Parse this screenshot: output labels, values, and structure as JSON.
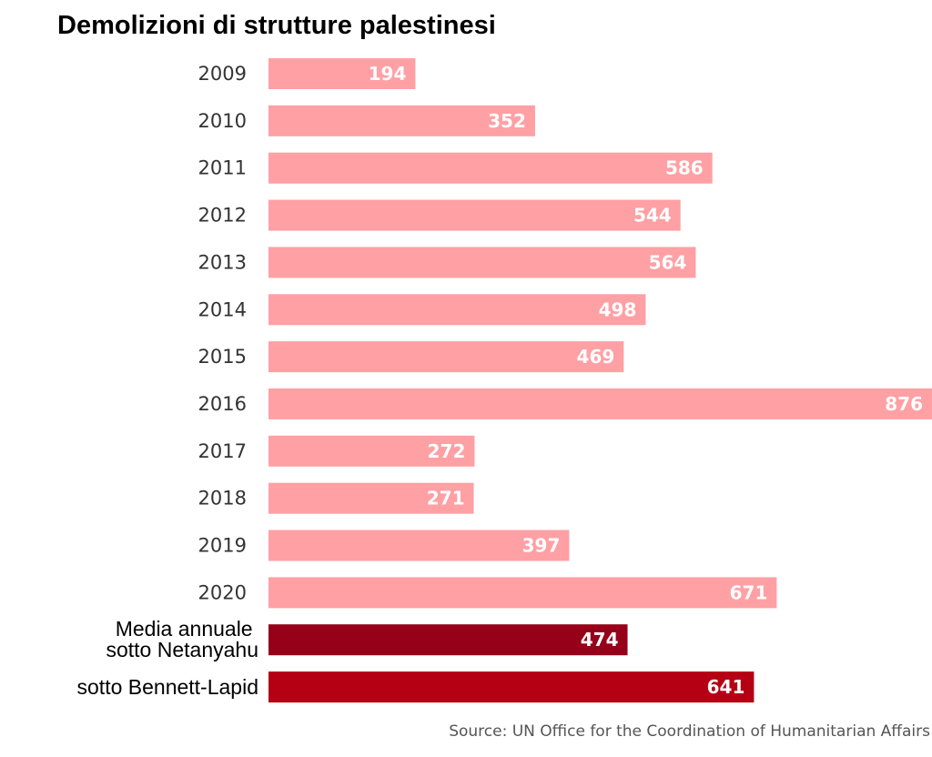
{
  "chart_data": {
    "type": "bar",
    "orientation": "horizontal",
    "title": "Demolizioni di strutture palestinesi",
    "source": "Source: UN Office for the Coordination of Humanitarian Affairs",
    "categories": [
      "2009",
      "2010",
      "2011",
      "2012",
      "2013",
      "2014",
      "2015",
      "2016",
      "2017",
      "2018",
      "2019",
      "2020",
      "Media annuale sotto Netanyahu",
      "sotto Bennett-Lapid"
    ],
    "values": [
      194,
      352,
      586,
      544,
      564,
      498,
      469,
      876,
      272,
      271,
      397,
      671,
      474,
      641
    ],
    "xlim": [
      0,
      876
    ],
    "grid": false,
    "data_labels": true,
    "colors": {
      "year": "#ffa0a4",
      "netanyahu": "#960018",
      "bennett_lapid": "#b50013"
    },
    "bar_colors": [
      "#ffa0a4",
      "#ffa0a4",
      "#ffa0a4",
      "#ffa0a4",
      "#ffa0a4",
      "#ffa0a4",
      "#ffa0a4",
      "#ffa0a4",
      "#ffa0a4",
      "#ffa0a4",
      "#ffa0a4",
      "#ffa0a4",
      "#960018",
      "#b50013"
    ]
  }
}
